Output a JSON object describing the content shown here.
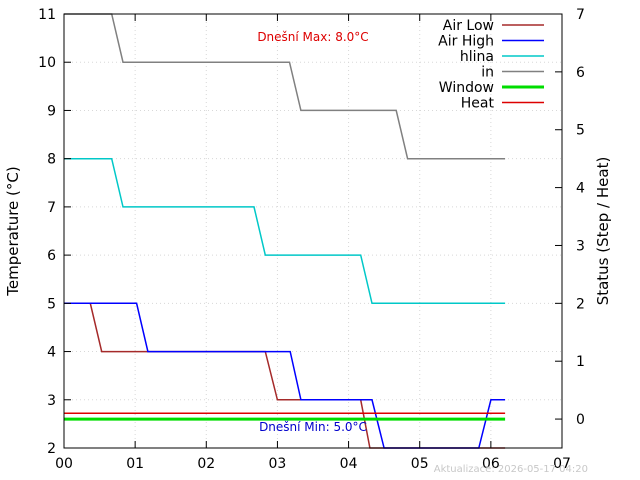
{
  "chart_data": {
    "type": "line",
    "title": "",
    "xlabel": "",
    "ylabel": "Temperature (°C)",
    "y2label": "Status (Step / Heat)",
    "x_ticks": [
      "00",
      "01",
      "02",
      "03",
      "04",
      "05",
      "06",
      "07"
    ],
    "xlim": [
      0,
      7
    ],
    "ylim": [
      2,
      11
    ],
    "y_ticks": [
      "2",
      "3",
      "4",
      "5",
      "6",
      "7",
      "8",
      "9",
      "10",
      "11"
    ],
    "y2lim": [
      -0.5,
      7
    ],
    "y2_ticks": [
      "0",
      "1",
      "2",
      "3",
      "4",
      "5",
      "6",
      "7"
    ],
    "grid": true,
    "legend_position": "top-right",
    "annotations": {
      "max_label": "Dnešní Max: 8.0°C",
      "min_label": "Dnešní Min: 5.0°C"
    },
    "footer": "Aktualizace: 2026-05-17 04:20",
    "series": [
      {
        "name": "Air Low",
        "color": "#a52a2a",
        "axis": "y",
        "x": [
          0,
          0.37,
          0.53,
          2.83,
          3,
          4.17,
          4.3,
          4.53,
          4.68,
          6.2
        ],
        "y": [
          5,
          5,
          4,
          4,
          3,
          3,
          2,
          2,
          2,
          2
        ]
      },
      {
        "name": "Air High",
        "color": "#0000ff",
        "axis": "y",
        "x": [
          0,
          1.02,
          1.18,
          3.18,
          3.33,
          4.33,
          4.5,
          5.83,
          6,
          6.2
        ],
        "y": [
          5,
          5,
          4,
          4,
          3,
          3,
          2,
          2,
          3,
          3
        ]
      },
      {
        "name": "hlina",
        "color": "#00c8c8",
        "axis": "y",
        "x": [
          0,
          0.67,
          0.83,
          2.67,
          2.83,
          4.17,
          4.33,
          6.2
        ],
        "y": [
          8,
          8,
          7,
          7,
          6,
          6,
          5,
          5
        ]
      },
      {
        "name": "in",
        "color": "#808080",
        "axis": "y",
        "x": [
          0,
          0.67,
          0.83,
          3.17,
          3.33,
          4.67,
          4.83,
          6.2
        ],
        "y": [
          11,
          11,
          10,
          10,
          9,
          9,
          8,
          8
        ]
      },
      {
        "name": "Window",
        "color": "#00dd00",
        "axis": "y2",
        "x": [
          0,
          6.2
        ],
        "y": [
          0,
          0
        ]
      },
      {
        "name": "Heat",
        "color": "#dd0000",
        "axis": "y2",
        "x": [
          0,
          6.2
        ],
        "y": [
          0.1,
          0.1
        ]
      }
    ]
  }
}
